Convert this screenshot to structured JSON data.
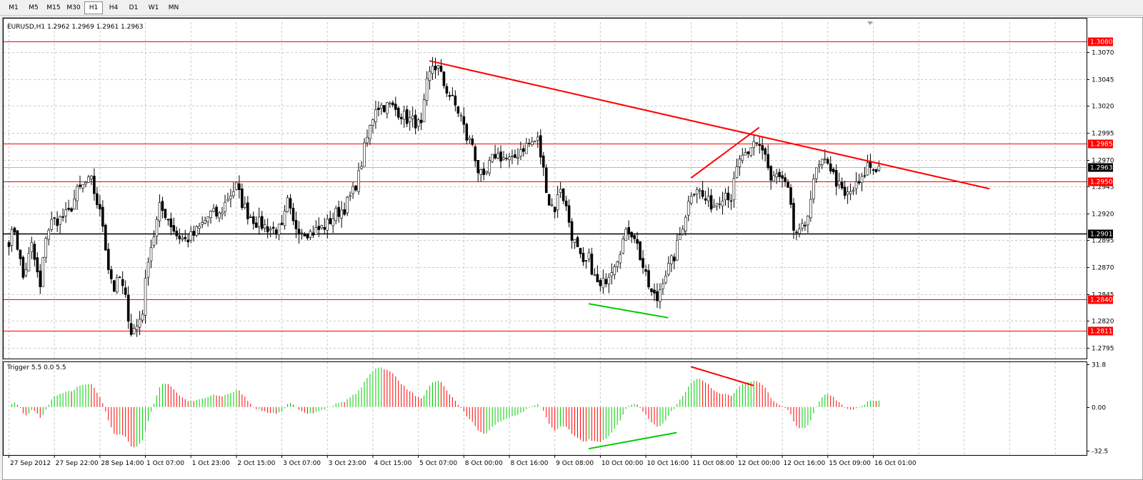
{
  "toolbar": {
    "timeframes": [
      {
        "label": "M1",
        "active": false
      },
      {
        "label": "M5",
        "active": false
      },
      {
        "label": "M15",
        "active": false
      },
      {
        "label": "M30",
        "active": false
      },
      {
        "label": "H1",
        "active": true
      },
      {
        "label": "H4",
        "active": false
      },
      {
        "label": "D1",
        "active": false
      },
      {
        "label": "W1",
        "active": false
      },
      {
        "label": "MN",
        "active": false
      }
    ]
  },
  "chart": {
    "header": "EURUSD,H1  1.2962 1.2969 1.2961 1.2963",
    "symbol": "EURUSD",
    "timeframe": "H1",
    "ohlc": {
      "open": 1.2962,
      "high": 1.2969,
      "low": 1.2961,
      "close": 1.2963
    },
    "price_axis_ticks": [
      "1.3070",
      "1.3045",
      "1.3020",
      "1.2995",
      "1.2970",
      "1.2945",
      "1.2920",
      "1.2895",
      "1.2870",
      "1.2845",
      "1.2820",
      "1.2795"
    ],
    "price_range": [
      1.2785,
      1.3098
    ],
    "current_price": {
      "value": 1.2963,
      "label": "1.2963"
    },
    "horizontal_levels": [
      {
        "value": 1.308,
        "label": "1.3080",
        "color": "#ff0000"
      },
      {
        "value": 1.2985,
        "label": "1.2985",
        "color": "#ff0000"
      },
      {
        "value": 1.295,
        "label": "1.2950",
        "color": "#ff0000"
      },
      {
        "value": 1.2901,
        "label": "1.2901",
        "color": "#000000"
      },
      {
        "value": 1.284,
        "label": "1.2840",
        "color": "#ff0000"
      },
      {
        "value": 1.2811,
        "label": "1.2811",
        "color": "#ff0000"
      }
    ],
    "trendlines": [
      {
        "from": {
          "bar": 148,
          "price": 1.3062
        },
        "to": {
          "bar": 345,
          "price": 1.2943
        },
        "color": "#ff0000"
      },
      {
        "from": {
          "bar": 240,
          "price": 1.2953
        },
        "to": {
          "bar": 264,
          "price": 1.3
        },
        "color": "#ff0000"
      },
      {
        "from": {
          "bar": 204,
          "price": 1.2836
        },
        "to": {
          "bar": 232,
          "price": 1.2823
        },
        "color": "#00cc00"
      }
    ],
    "time_labels": [
      {
        "bar": 0,
        "label": "27 Sep 2012"
      },
      {
        "bar": 16,
        "label": "27 Sep 22:00"
      },
      {
        "bar": 32,
        "label": "28 Sep 14:00"
      },
      {
        "bar": 48,
        "label": "1 Oct 07:00"
      },
      {
        "bar": 64,
        "label": "1 Oct 23:00"
      },
      {
        "bar": 80,
        "label": "2 Oct 15:00"
      },
      {
        "bar": 96,
        "label": "3 Oct 07:00"
      },
      {
        "bar": 112,
        "label": "3 Oct 23:00"
      },
      {
        "bar": 128,
        "label": "4 Oct 15:00"
      },
      {
        "bar": 144,
        "label": "5 Oct 07:00"
      },
      {
        "bar": 160,
        "label": "8 Oct 00:00"
      },
      {
        "bar": 176,
        "label": "8 Oct 16:00"
      },
      {
        "bar": 192,
        "label": "9 Oct 08:00"
      },
      {
        "bar": 208,
        "label": "10 Oct 00:00"
      },
      {
        "bar": 224,
        "label": "10 Oct 16:00"
      },
      {
        "bar": 240,
        "label": "11 Oct 08:00"
      },
      {
        "bar": 256,
        "label": "12 Oct 00:00"
      },
      {
        "bar": 272,
        "label": "12 Oct 16:00"
      },
      {
        "bar": 288,
        "label": "15 Oct 09:00"
      },
      {
        "bar": 304,
        "label": "16 Oct 01:00"
      }
    ],
    "price_anchors": [
      [
        0,
        1.2895
      ],
      [
        2,
        1.2905
      ],
      [
        5,
        1.286
      ],
      [
        8,
        1.289
      ],
      [
        11,
        1.285
      ],
      [
        13,
        1.29
      ],
      [
        15,
        1.2912
      ],
      [
        18,
        1.2915
      ],
      [
        21,
        1.292
      ],
      [
        24,
        1.294
      ],
      [
        27,
        1.2948
      ],
      [
        29,
        1.295
      ],
      [
        31,
        1.293
      ],
      [
        33,
        1.291
      ],
      [
        35,
        1.287
      ],
      [
        37,
        1.285
      ],
      [
        39,
        1.286
      ],
      [
        41,
        1.284
      ],
      [
        43,
        1.281
      ],
      [
        45,
        1.2815
      ],
      [
        47,
        1.283
      ],
      [
        49,
        1.288
      ],
      [
        51,
        1.29
      ],
      [
        53,
        1.2925
      ],
      [
        55,
        1.292
      ],
      [
        57,
        1.291
      ],
      [
        59,
        1.29
      ],
      [
        62,
        1.2895
      ],
      [
        65,
        1.29
      ],
      [
        68,
        1.291
      ],
      [
        71,
        1.292
      ],
      [
        74,
        1.2918
      ],
      [
        77,
        1.2935
      ],
      [
        80,
        1.2945
      ],
      [
        82,
        1.293
      ],
      [
        84,
        1.292
      ],
      [
        87,
        1.2912
      ],
      [
        90,
        1.2908
      ],
      [
        93,
        1.2905
      ],
      [
        96,
        1.2905
      ],
      [
        98,
        1.293
      ],
      [
        100,
        1.291
      ],
      [
        103,
        1.2905
      ],
      [
        106,
        1.2902
      ],
      [
        109,
        1.2905
      ],
      [
        112,
        1.291
      ],
      [
        115,
        1.292
      ],
      [
        118,
        1.2925
      ],
      [
        121,
        1.294
      ],
      [
        123,
        1.2955
      ],
      [
        125,
        1.298
      ],
      [
        127,
        1.3
      ],
      [
        129,
        1.302
      ],
      [
        131,
        1.302
      ],
      [
        134,
        1.302
      ],
      [
        137,
        1.3015
      ],
      [
        140,
        1.3008
      ],
      [
        143,
        1.3005
      ],
      [
        145,
        1.3
      ],
      [
        147,
        1.304
      ],
      [
        149,
        1.3058
      ],
      [
        151,
        1.3055
      ],
      [
        153,
        1.304
      ],
      [
        155,
        1.303
      ],
      [
        157,
        1.302
      ],
      [
        159,
        1.301
      ],
      [
        161,
        1.299
      ],
      [
        163,
        1.2985
      ],
      [
        165,
        1.296
      ],
      [
        167,
        1.295
      ],
      [
        169,
        1.2965
      ],
      [
        171,
        1.2975
      ],
      [
        174,
        1.2972
      ],
      [
        177,
        1.2968
      ],
      [
        180,
        1.298
      ],
      [
        183,
        1.2985
      ],
      [
        186,
        1.2988
      ],
      [
        188,
        1.296
      ],
      [
        190,
        1.293
      ],
      [
        192,
        1.2925
      ],
      [
        194,
        1.2945
      ],
      [
        196,
        1.2925
      ],
      [
        198,
        1.29
      ],
      [
        200,
        1.2885
      ],
      [
        202,
        1.287
      ],
      [
        204,
        1.2878
      ],
      [
        206,
        1.286
      ],
      [
        208,
        1.285
      ],
      [
        210,
        1.286
      ],
      [
        212,
        1.287
      ],
      [
        214,
        1.288
      ],
      [
        216,
        1.2895
      ],
      [
        218,
        1.2905
      ],
      [
        220,
        1.29
      ],
      [
        222,
        1.288
      ],
      [
        224,
        1.286
      ],
      [
        226,
        1.2845
      ],
      [
        228,
        1.284
      ],
      [
        230,
        1.286
      ],
      [
        232,
        1.287
      ],
      [
        234,
        1.288
      ],
      [
        236,
        1.29
      ],
      [
        238,
        1.292
      ],
      [
        240,
        1.294
      ],
      [
        242,
        1.2945
      ],
      [
        244,
        1.2935
      ],
      [
        246,
        1.293
      ],
      [
        248,
        1.2928
      ],
      [
        250,
        1.2935
      ],
      [
        252,
        1.294
      ],
      [
        254,
        1.2935
      ],
      [
        256,
        1.296
      ],
      [
        258,
        1.2975
      ],
      [
        260,
        1.297
      ],
      [
        262,
        1.2985
      ],
      [
        264,
        1.2985
      ],
      [
        266,
        1.2975
      ],
      [
        268,
        1.295
      ],
      [
        270,
        1.2955
      ],
      [
        272,
        1.295
      ],
      [
        274,
        1.294
      ],
      [
        276,
        1.2905
      ],
      [
        278,
        1.29
      ],
      [
        280,
        1.291
      ],
      [
        282,
        1.2935
      ],
      [
        284,
        1.296
      ],
      [
        286,
        1.2965
      ],
      [
        288,
        1.297
      ],
      [
        290,
        1.2955
      ],
      [
        292,
        1.2945
      ],
      [
        294,
        1.2935
      ],
      [
        296,
        1.294
      ],
      [
        298,
        1.2945
      ],
      [
        300,
        1.295
      ],
      [
        302,
        1.2965
      ],
      [
        304,
        1.2962
      ],
      [
        306,
        1.2963
      ]
    ]
  },
  "indicator": {
    "header": "Trigger 5.5 0.0 5.5",
    "ticks": [
      "31.8",
      "0.00",
      "-32.5"
    ],
    "range": [
      -32.5,
      31.8
    ],
    "positive_color": "#00cc00",
    "negative_color": "#ff0000",
    "divergence_lines": [
      {
        "from": {
          "bar": 240,
          "value": 30
        },
        "to": {
          "bar": 262,
          "value": 16
        },
        "color": "#ff0000"
      },
      {
        "from": {
          "bar": 204,
          "value": -31
        },
        "to": {
          "bar": 235,
          "value": -19
        },
        "color": "#00cc00"
      }
    ]
  }
}
